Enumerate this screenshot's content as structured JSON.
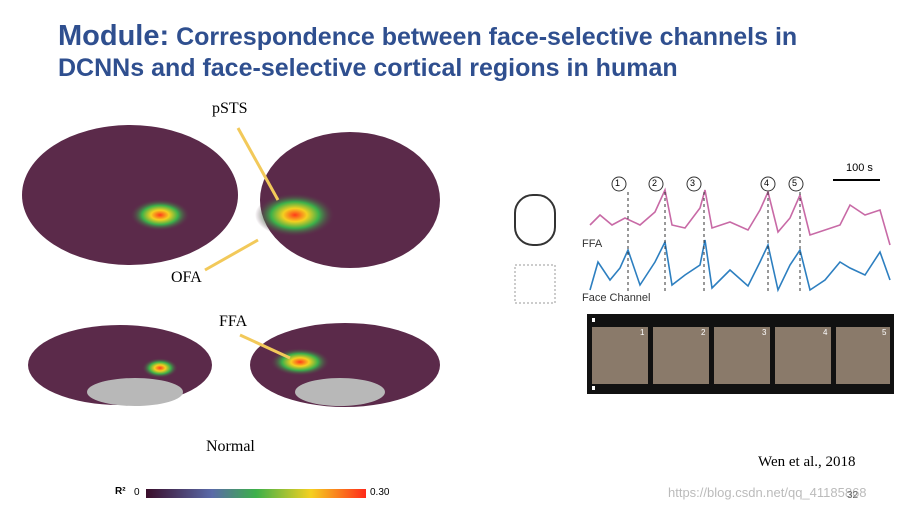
{
  "header": {
    "prefix": "Module:",
    "lines": [
      "Correspondence between face-selective channels in",
      "DCNNs and face-selective cortical regions in human"
    ]
  },
  "brain": {
    "labels": {
      "psts": "pSTS",
      "ofa": "OFA",
      "ffa": "FFA"
    },
    "condition": "Normal",
    "colorbar": {
      "label": "R²",
      "min": "0",
      "max": "0.30"
    }
  },
  "traces": {
    "scale": "100 s",
    "markers": [
      "1",
      "2",
      "3",
      "4",
      "5"
    ],
    "ffa": "FFA",
    "face_channel": "Face Channel",
    "frames": [
      "1",
      "2",
      "3",
      "4",
      "5"
    ]
  },
  "citation": "Wen et al., 2018",
  "watermark": "https://blog.csdn.net/qq_41185868",
  "page_number": "32"
}
